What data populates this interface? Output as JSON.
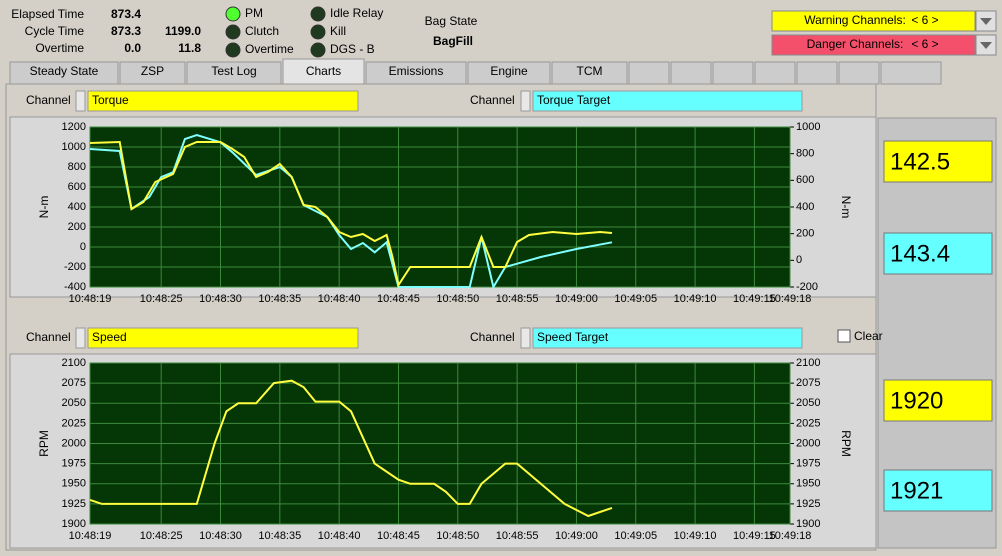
{
  "status": [
    {
      "label": "Elapsed Time",
      "values": [
        "873.4"
      ]
    },
    {
      "label": "Cycle Time",
      "values": [
        "873.3",
        "1199.0"
      ]
    },
    {
      "label": "Overtime",
      "values": [
        "0.0",
        "11.8"
      ]
    }
  ],
  "indicators": [
    {
      "label": "PM",
      "on": true
    },
    {
      "label": "Clutch",
      "on": false
    },
    {
      "label": "Overtime",
      "on": false
    },
    {
      "label": "Idle Relay",
      "on": false
    },
    {
      "label": "Kill",
      "on": false
    },
    {
      "label": "DGS - B",
      "on": false
    }
  ],
  "bag_state": {
    "label": "Bag State",
    "value": "BagFill"
  },
  "alerts": [
    {
      "label": "Warning Channels:",
      "value": "< 6 >",
      "color": "#ffff00"
    },
    {
      "label": "Danger Channels:",
      "value": "< 6 >",
      "color": "#f4506c"
    }
  ],
  "tabs": [
    "Steady State",
    "ZSP",
    "Test Log",
    "Charts",
    "Emissions",
    "Engine",
    "TCM"
  ],
  "active_tab": "Charts",
  "clear_label": "Clear",
  "chart_data": [
    {
      "type": "line",
      "channels": [
        {
          "label": "Channel",
          "value": "Torque",
          "color": "#ffff00"
        },
        {
          "label": "Channel",
          "value": "Torque Target",
          "color": "#66ffff"
        }
      ],
      "ylabel": "N-m",
      "y2label": "N-m",
      "xlim": [
        "10:48:19",
        "10:49:18"
      ],
      "xticks": [
        "10:48:19",
        "10:48:25",
        "10:48:30",
        "10:48:35",
        "10:48:40",
        "10:48:45",
        "10:48:50",
        "10:48:55",
        "10:49:00",
        "10:49:05",
        "10:49:10",
        "10:49:15",
        "10:49:18"
      ],
      "ylim": [
        -400,
        1200
      ],
      "yticks": [
        -400,
        -200,
        0,
        200,
        400,
        600,
        800,
        1000,
        1200
      ],
      "y2lim": [
        -200,
        1000
      ],
      "y2ticks": [
        -200,
        0,
        200,
        400,
        600,
        800,
        1000
      ],
      "series": [
        {
          "name": "Torque Target",
          "color": "#80ffff",
          "axis": "y2",
          "x": [
            "10:48:19",
            "10:48:21.5",
            "10:48:22.5",
            "10:48:24",
            "10:48:25",
            "10:48:26",
            "10:48:27",
            "10:48:28",
            "10:48:30",
            "10:48:31",
            "10:48:33",
            "10:48:35",
            "10:48:36",
            "10:48:37",
            "10:48:39",
            "10:48:40",
            "10:48:41",
            "10:48:42",
            "10:48:43",
            "10:48:44",
            "10:48:45",
            "10:48:47",
            "10:48:51",
            "10:48:52",
            "10:48:53",
            "10:48:54",
            "10:48:57",
            "10:49:00",
            "10:49:03"
          ],
          "values": [
            835,
            820,
            385,
            475,
            625,
            660,
            910,
            940,
            885,
            810,
            640,
            700,
            625,
            415,
            325,
            190,
            85,
            130,
            60,
            135,
            -200,
            -200,
            -200,
            175,
            -200,
            -50,
            25,
            85,
            135
          ]
        },
        {
          "name": "Torque",
          "color": "#ffff40",
          "axis": "y",
          "x": [
            "10:48:19",
            "10:48:21.5",
            "10:48:22.5",
            "10:48:23.5",
            "10:48:24.5",
            "10:48:26",
            "10:48:27",
            "10:48:28",
            "10:48:30",
            "10:48:31",
            "10:48:32",
            "10:48:33",
            "10:48:34",
            "10:48:35",
            "10:48:36",
            "10:48:37",
            "10:48:38",
            "10:48:39",
            "10:48:40",
            "10:48:41",
            "10:48:42",
            "10:48:43",
            "10:48:44",
            "10:48:44.5",
            "10:48:45",
            "10:48:46",
            "10:48:51",
            "10:48:52",
            "10:48:53",
            "10:48:54",
            "10:48:55",
            "10:48:56",
            "10:48:58",
            "10:49:00",
            "10:49:02",
            "10:49:03"
          ],
          "values": [
            1040,
            1050,
            380,
            450,
            650,
            730,
            1000,
            1050,
            1050,
            980,
            900,
            700,
            750,
            830,
            700,
            420,
            400,
            300,
            150,
            100,
            130,
            60,
            120,
            -100,
            -380,
            -200,
            -200,
            100,
            -200,
            -200,
            50,
            120,
            150,
            130,
            150,
            140
          ]
        }
      ],
      "readouts": [
        {
          "value": "142.5",
          "color": "#ffff00"
        },
        {
          "value": "143.4",
          "color": "#66ffff"
        }
      ]
    },
    {
      "type": "line",
      "channels": [
        {
          "label": "Channel",
          "value": "Speed",
          "color": "#ffff00"
        },
        {
          "label": "Channel",
          "value": "Speed Target",
          "color": "#66ffff"
        }
      ],
      "ylabel": "RPM",
      "y2label": "RPM",
      "xlim": [
        "10:48:19",
        "10:49:18"
      ],
      "xticks": [
        "10:48:19",
        "10:48:25",
        "10:48:30",
        "10:48:35",
        "10:48:40",
        "10:48:45",
        "10:48:50",
        "10:48:55",
        "10:49:00",
        "10:49:05",
        "10:49:10",
        "10:49:15",
        "10:49:18"
      ],
      "ylim": [
        1900,
        2100
      ],
      "yticks": [
        1900,
        1925,
        1950,
        1975,
        2000,
        2025,
        2050,
        2075,
        2100
      ],
      "y2lim": [
        1900,
        2100
      ],
      "y2ticks": [
        1900,
        1925,
        1950,
        1975,
        2000,
        2025,
        2050,
        2075,
        2100
      ],
      "series": [
        {
          "name": "Speed",
          "color": "#ffff40",
          "axis": "y",
          "x": [
            "10:48:19",
            "10:48:20",
            "10:48:28",
            "10:48:29.5",
            "10:48:30.5",
            "10:48:31.5",
            "10:48:33",
            "10:48:34.5",
            "10:48:36",
            "10:48:37",
            "10:48:38",
            "10:48:40",
            "10:48:41",
            "10:48:43",
            "10:48:45",
            "10:48:46",
            "10:48:48",
            "10:48:49",
            "10:48:50",
            "10:48:51",
            "10:48:52",
            "10:48:54",
            "10:48:55",
            "10:48:57",
            "10:48:59",
            "10:49:01",
            "10:49:03"
          ],
          "values": [
            1930,
            1925,
            1925,
            2000,
            2040,
            2050,
            2050,
            2075,
            2078,
            2070,
            2052,
            2052,
            2040,
            1975,
            1955,
            1950,
            1950,
            1940,
            1925,
            1925,
            1950,
            1975,
            1975,
            1950,
            1925,
            1910,
            1920
          ]
        }
      ],
      "readouts": [
        {
          "value": "1920",
          "color": "#ffff00"
        },
        {
          "value": "1921",
          "color": "#66ffff"
        }
      ]
    }
  ]
}
